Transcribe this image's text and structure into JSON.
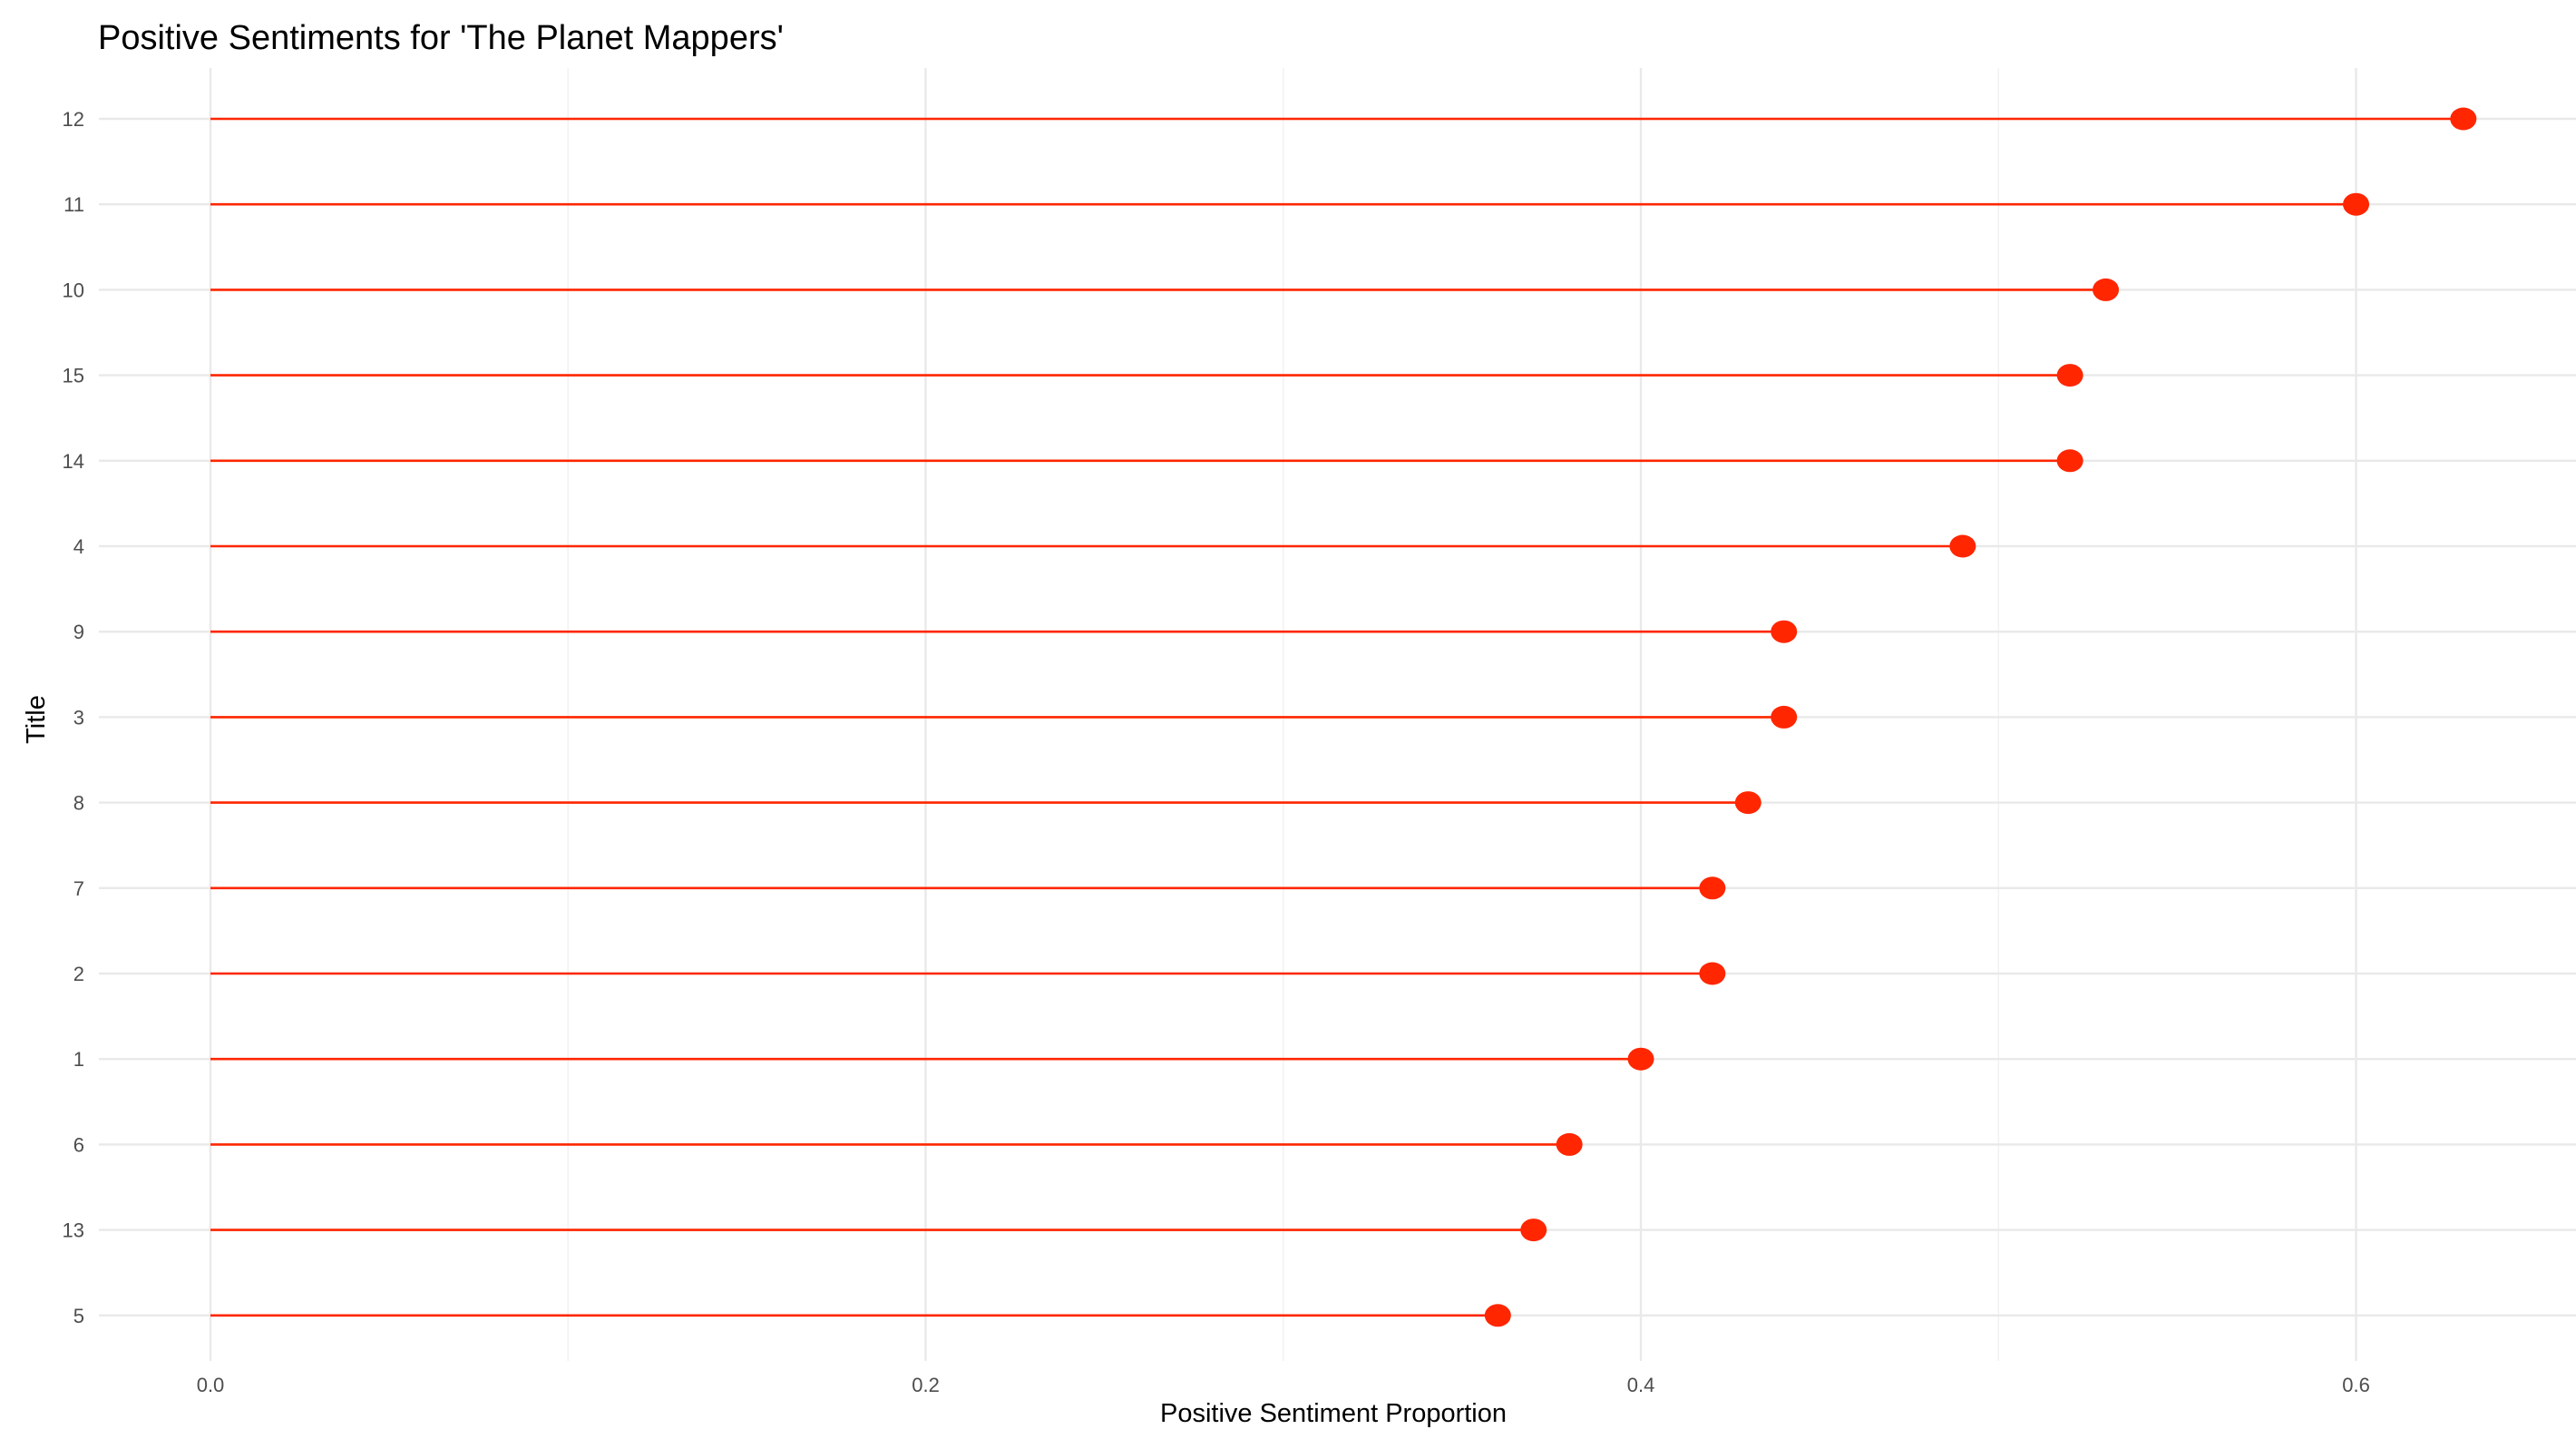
{
  "chart_data": {
    "type": "lollipop",
    "title": "Positive Sentiments for 'The Planet Mappers'",
    "xlabel": "Positive Sentiment Proportion",
    "ylabel": "Title",
    "xlim": [
      -0.0312,
      0.6615
    ],
    "xticks": [
      0.0,
      0.2,
      0.4,
      0.6
    ],
    "xtick_labels": [
      "0.0",
      "0.2",
      "0.4",
      "0.6"
    ],
    "grid": true,
    "legend": "none",
    "series": [
      {
        "categories": [
          "12",
          "11",
          "10",
          "15",
          "14",
          "4",
          "9",
          "3",
          "8",
          "7",
          "2",
          "1",
          "6",
          "13",
          "5"
        ],
        "values": [
          0.63,
          0.6,
          0.53,
          0.52,
          0.52,
          0.49,
          0.44,
          0.44,
          0.43,
          0.42,
          0.42,
          0.4,
          0.38,
          0.37,
          0.36
        ]
      }
    ],
    "colors": {
      "stem": "#ff2600",
      "point": "#ff2600",
      "grid": "#e9e9e9"
    }
  }
}
